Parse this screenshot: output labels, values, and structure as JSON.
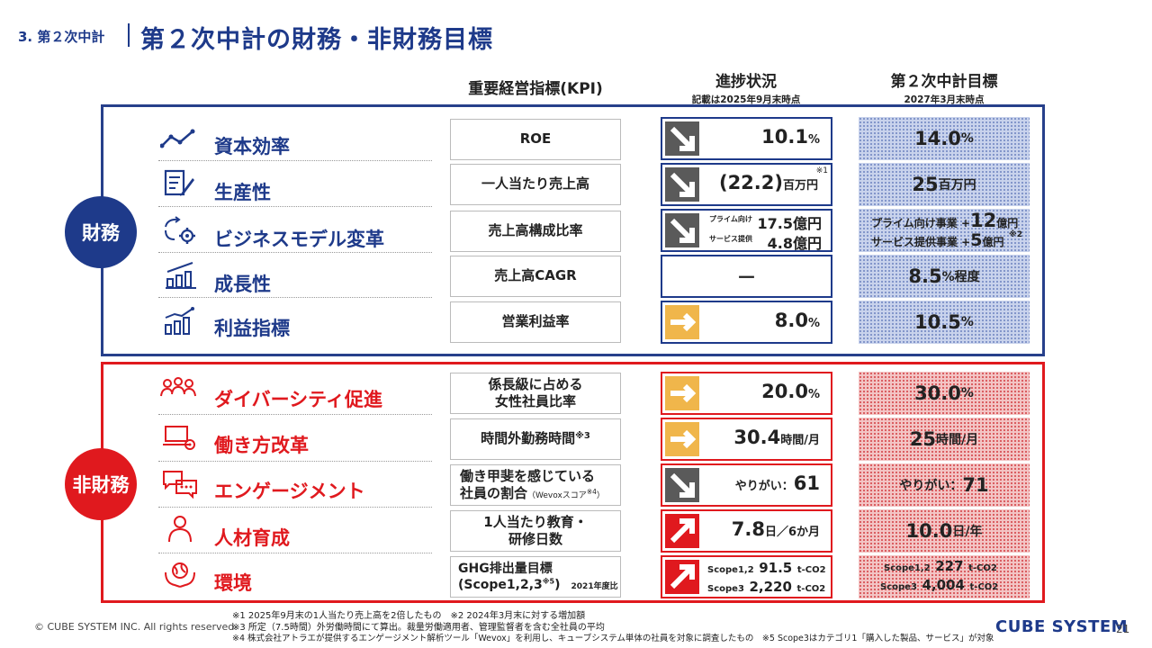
{
  "header": {
    "section": "3. 第２次中計",
    "title": "第２次中計の財務・非財務目標"
  },
  "columns": {
    "kpi": "重要経営指標(KPI)",
    "progress": "進捗状況",
    "progress_note": "記載は2025年9月末時点",
    "target": "第２次中計目標",
    "target_note": "2027年3月末時点"
  },
  "groups": {
    "financial": "財務",
    "nonfinancial": "非財務"
  },
  "financial": [
    {
      "category": "資本効率",
      "icon": "line-chart-icon",
      "kpi": "ROE",
      "trend": "down",
      "value": "10.1",
      "unit": "%",
      "target": "14.0",
      "target_unit": " %"
    },
    {
      "category": "生産性",
      "icon": "document-pen-icon",
      "kpi": "一人当たり売上高",
      "trend": "down",
      "value": "(22.2)",
      "unit": "百万円",
      "note": "※1",
      "target": "25",
      "target_unit": "百万円"
    },
    {
      "category": "ビジネスモデル変革",
      "icon": "cycle-gear-icon",
      "kpi": "売上高構成比率",
      "trend": "down",
      "sub1_label": "プライム向け",
      "sub1_value": "17.5億円",
      "sub2_label": "サービス提供",
      "sub2_value": "4.8億円",
      "target_l1_label": "プライム向け事業 +",
      "target_l1_num": "12",
      "target_l1_unit": "億円",
      "target_l2_label": "サービス提供事業 +",
      "target_l2_num": "5",
      "target_l2_unit": "億円",
      "target_note": "※2"
    },
    {
      "category": "成長性",
      "icon": "bar-chart-icon",
      "kpi": "売上高CAGR",
      "trend": "none",
      "value": "－",
      "target": "8.5",
      "target_unit": "%程度"
    },
    {
      "category": "利益指標",
      "icon": "bar-line-chart-icon",
      "kpi": "営業利益率",
      "trend": "right",
      "value": "8.0",
      "unit": "%",
      "target": "10.5",
      "target_unit": "%"
    }
  ],
  "nonfinancial": [
    {
      "category": "ダイバーシティ促進",
      "icon": "people-icon",
      "kpi_l1": "係長級に占める",
      "kpi_l2": "女性社員比率",
      "trend": "right",
      "value": "20.0",
      "unit": "%",
      "target": "30.0",
      "target_unit": "%"
    },
    {
      "category": "働き方改革",
      "icon": "laptop-gear-icon",
      "kpi": "時間外勤務時間",
      "kpi_note": "※3",
      "trend": "right",
      "value": "30.4",
      "unit": "時間/月",
      "target": "25",
      "target_unit": "時間/月"
    },
    {
      "category": "エンゲージメント",
      "icon": "chat-icon",
      "kpi_l1": "働き甲斐を感じている",
      "kpi_l2": "社員の割合",
      "kpi_sub": "（Wevoxスコア",
      "kpi_sub_note": "※4",
      "kpi_sub_end": "）",
      "trend": "down",
      "value_prefix": "やりがい：",
      "value": "61",
      "target_prefix": "やりがい：",
      "target": "71"
    },
    {
      "category": "人材育成",
      "icon": "person-icon",
      "kpi_l1": "1人当たり教育・",
      "kpi_l2": "研修日数",
      "trend": "up",
      "value": "7.8",
      "unit": "日／6か月",
      "target": "10.0",
      "target_unit": "日/年"
    },
    {
      "category": "環境",
      "icon": "earth-hands-icon",
      "kpi_l1": "GHG排出量目標",
      "kpi_l2": "(Scope1,2,3",
      "kpi_l2_note": "※5",
      "kpi_l2_end": ")",
      "kpi_l2_year": "2021年度比",
      "trend": "up",
      "s12_label": "Scope1,2",
      "s12_value": "91.5",
      "s12_unit": "t-CO2",
      "s3_label": "Scope3",
      "s3_value": "2,220",
      "s3_unit": "t-CO2",
      "t_s12_label": "Scope1,2",
      "t_s12_value": "227",
      "t_s12_unit": "t-CO2",
      "t_s3_label": "Scope3",
      "t_s3_value": "4,004",
      "t_s3_unit": "t-CO2"
    }
  ],
  "footnotes": {
    "l1": "※1 2025年9月末の1人当たり売上高を2倍したもの　※2 2024年3月末に対する増加額",
    "l2": "※3 所定（7.5時間）外労働時間にて算出。裁量労働適用者、管理監督者を含む全社員の平均",
    "l3": "※4 株式会社アトラエが提供するエンゲージメント解析ツール「Wevox」を利用し、キューブシステム単体の社員を対象に調査したもの　※5 Scope3はカテゴリ1「購入した製品、サービス」が対象"
  },
  "footer": {
    "copyright": "© CUBE SYSTEM INC. All rights reserved.",
    "logo": "CUBE SYSTEM",
    "page": "21"
  },
  "colors": {
    "navy": "#1e3a8a",
    "red": "#e0191e",
    "arrow_down": "#5a5a5a",
    "arrow_right": "#f0b64b",
    "arrow_up": "#e0191e"
  }
}
